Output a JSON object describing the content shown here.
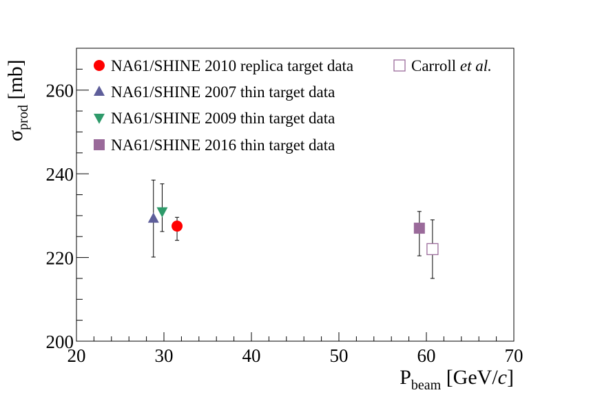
{
  "chart_data": {
    "type": "scatter",
    "title": "",
    "xlabel": {
      "main": "P",
      "sub": "beam",
      "unit_open": " [GeV/",
      "unit_italic": "c",
      "unit_close": "]"
    },
    "ylabel": {
      "main": "σ",
      "sub": "prod",
      "unit": " [mb]"
    },
    "xlim": [
      20,
      70
    ],
    "ylim": [
      200,
      270
    ],
    "x_ticks": [
      20,
      30,
      40,
      50,
      60,
      70
    ],
    "y_ticks": [
      200,
      220,
      240,
      260
    ],
    "grid": false,
    "legend_position": "top",
    "series": [
      {
        "name": "NA61/SHINE 2010 replica target data",
        "marker": "circle",
        "filled": true,
        "color": "#ff0000",
        "points": [
          {
            "x": 31.5,
            "y": 227.5,
            "err_low": 3.4,
            "err_high": 2.1
          }
        ]
      },
      {
        "name": "NA61/SHINE 2007 thin target data",
        "marker": "triangle-up",
        "filled": true,
        "color": "#5e5e9a",
        "points": [
          {
            "x": 28.8,
            "y": 229.3,
            "err_low": 9.2,
            "err_high": 9.2
          }
        ]
      },
      {
        "name": "NA61/SHINE 2009 thin target data",
        "marker": "triangle-down",
        "filled": true,
        "color": "#2e9a6a",
        "points": [
          {
            "x": 29.8,
            "y": 231.0,
            "err_low": 4.8,
            "err_high": 6.6
          }
        ]
      },
      {
        "name": "NA61/SHINE 2016 thin target data",
        "marker": "square",
        "filled": true,
        "color": "#9a6a9a",
        "points": [
          {
            "x": 59.2,
            "y": 227.0,
            "err_low": 6.6,
            "err_high": 4.0
          }
        ]
      },
      {
        "name_plain": "Carroll ",
        "name_italic": "et al.",
        "marker": "square",
        "filled": false,
        "color": "#9a6a9a",
        "points": [
          {
            "x": 60.7,
            "y": 222.0,
            "err_low": 7.0,
            "err_high": 7.0
          }
        ]
      }
    ]
  }
}
